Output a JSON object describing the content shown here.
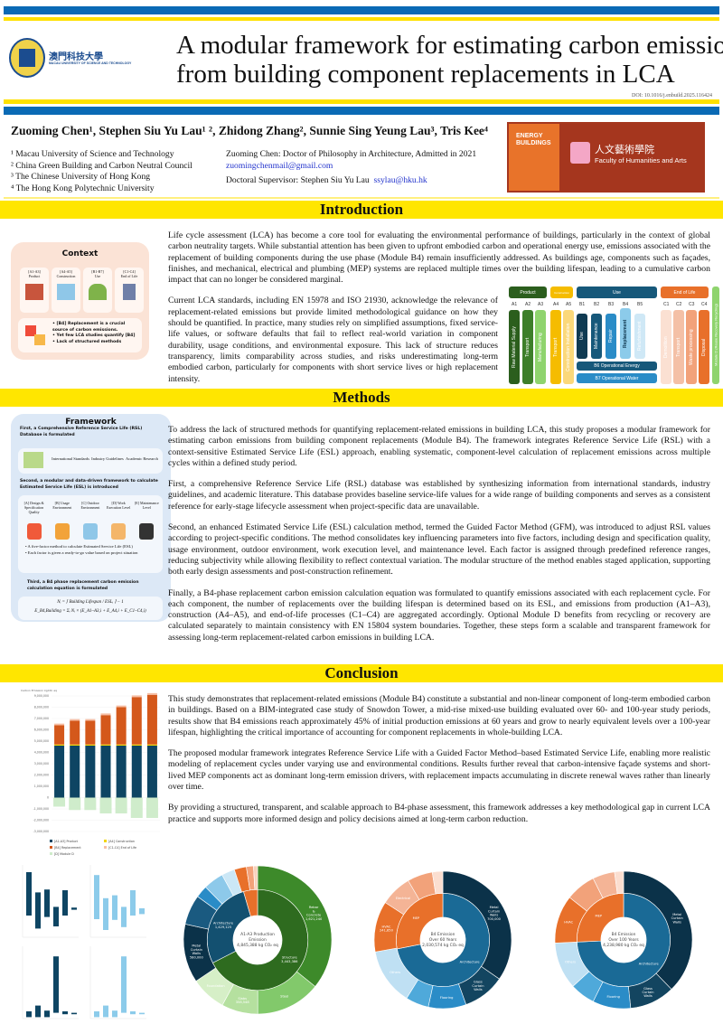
{
  "header": {
    "title_line1": "A modular framework for estimating carbon emissions",
    "title_line2": "from building component replacements in LCA",
    "doi": "DOI: 10.1016/j.enbuild.2025.116424",
    "university_cn": "澳門科技大學",
    "university_en": "MACAU UNIVERSITY OF SCIENCE AND TECHNOLOGY",
    "journal": "ENERGY BUILDINGS",
    "faculty_cn": "人文藝術學院",
    "faculty_en": "Faculty of Humanities and Arts"
  },
  "authors": "Zuoming Chen¹, Stephen Siu Yu Lau¹ ², Zhidong Zhang², Sunnie Sing Yeung Lau³, Tris Kee⁴",
  "affiliations": [
    "¹ Macau University of Science and Technology",
    "² China Green Building and Carbon Neutral Council",
    "³ The Chinese University of Hong Kong",
    "⁴ The Hong Kong Polytechnic University"
  ],
  "contact": {
    "line1": "Zuoming Chen: Doctor of Philosophy in Architecture, Admitted in 2021",
    "email1": "zuomingchenmail@gmail.com",
    "supervisor": "Doctoral Supervisor: Stephen Siu Yu Lau",
    "email2": "ssylau@hku.hk"
  },
  "sections": {
    "intro": "Introduction",
    "methods": "Methods",
    "conclusion": "Conclusion"
  },
  "context": {
    "title": "Context",
    "stages": [
      {
        "code": "[A1-A3]",
        "name": "Product"
      },
      {
        "code": "[A4-A5]",
        "name": "Construction"
      },
      {
        "code": "[B1-B7]",
        "name": "Use"
      },
      {
        "code": "[C1-C4]",
        "name": "End of Life"
      }
    ],
    "bullets": [
      "[B4] Replacement is a crucial source of carbon emissions.",
      "Yet few LCA studies quantify [B4]",
      "Lack of structured methods"
    ]
  },
  "intro": [
    "Life cycle assessment (LCA) has become a core tool for evaluating the environmental performance of buildings, particularly in the context of global carbon neutrality targets. While substantial attention has been given to upfront embodied carbon and operational energy use, emissions associated with the replacement of building components during the use phase (Module B4) remain insufficiently addressed. As buildings age, components such as façades, finishes, and mechanical, electrical and plumbing (MEP) systems are replaced multiple times over the building lifespan, leading to a cumulative carbon impact that can no longer be considered marginal.",
    "Current LCA standards, including EN 15978 and ISO 21930, acknowledge the relevance of replacement-related emissions but provide limited methodological guidance on how they should be quantified. In practice, many studies rely on simplified assumptions, fixed service-life values, or software defaults that fail to reflect real-world variation in component durability, usage conditions, and environmental exposure. This lack of structure reduces transparency, limits comparability across studies, and risks underestimating long-term embodied carbon, particularly for components with short service lives or high replacement intensity."
  ],
  "lca": {
    "groups": {
      "product": "Product",
      "construction": "Construction",
      "use": "Use",
      "eol": "End of Life"
    },
    "codes": [
      "A1",
      "A2",
      "A3",
      "A4",
      "A5",
      "B1",
      "B2",
      "B3",
      "B4",
      "B5",
      "C1",
      "C2",
      "C3",
      "C4"
    ],
    "modules": [
      "Raw Material Supply",
      "Transport",
      "Manufacturing",
      "Transport",
      "Construction Installation",
      "Use",
      "Maintenance",
      "Repair",
      "Replacement",
      "Refurbishment",
      "Demolition",
      "Transport",
      "Waste processing",
      "Disposal"
    ],
    "b6": "B6 Operational Energy",
    "b7": "B7 Operational Water",
    "d": "Module D (Reuse Recovery Recycling)"
  },
  "framework": {
    "title": "Framework",
    "step1": "First, a Comprehensive Reference Service Life (RSL) Database is formulated",
    "sources": [
      "International Standards",
      "Industry Guidelines",
      "Academic Research"
    ],
    "step2": "Second, a modular and data-driven framework to calculate Estimated Service Life (ESL) is introduced",
    "factors": [
      "[A] Design & Specification Quality",
      "[B] Usage Environment",
      "[C] Outdoor Environment",
      "[D] Work Execution Level",
      "[E] Maintenance Level"
    ],
    "bullets": [
      "A five-factor method to calculate Estimated Service Life (ESL)",
      "Each factor is given a ready-to-go value based on project situation"
    ],
    "step3": "Third, a B4 phase replacement carbon emission calculation equation is formulated",
    "eq1": "Nᵢ = ⌈ Building Lifespan / ESLᵢ ⌉ − 1",
    "eq2": "E_B4,Building = Σᵢ Nᵢ × (E_A1–A3,i + E_A4,i + E_C1–C4,i)"
  },
  "methods": [
    "To address the lack of structured methods for quantifying replacement-related emissions in building LCA, this study proposes a modular framework for estimating carbon emissions from building component replacements (Module B4). The framework integrates Reference Service Life (RSL) with a context-sensitive Estimated Service Life (ESL) approach, enabling systematic, component-level calculation of replacement emissions across multiple cycles within a defined study period.",
    "First, a comprehensive Reference Service Life (RSL) database was established by synthesizing information from international standards, industry guidelines, and academic literature. This database provides baseline service-life values for a wide range of building components and serves as a consistent reference for early-stage lifecycle assessment when project-specific data are unavailable.",
    "Second, an enhanced Estimated Service Life (ESL) calculation method, termed the Guided Factor Method (GFM), was introduced to adjust RSL values according to project-specific conditions. The method consolidates key influencing parameters into five factors, including design and specification quality, usage environment, outdoor environment, work execution level, and maintenance level. Each factor is assigned through predefined reference ranges, reducing subjectivity while allowing flexibility to reflect contextual variation. The modular structure of the method enables staged application, supporting both early design assessments and post-construction refinement.",
    "Finally, a B4-phase replacement carbon emission calculation equation was formulated to quantify emissions associated with each replacement cycle. For each component, the number of replacements over the building lifespan is determined based on its ESL, and emissions from production (A1–A3), construction (A4–A5), and end-of-life processes (C1–C4) are aggregated accordingly. Optional Module D benefits from recycling or recovery are calculated separately to maintain consistency with EN 15804 system boundaries. Together, these steps form a scalable and transparent framework for assessing long-term replacement-related carbon emissions in building LCA."
  ],
  "conclusion": [
    "This study demonstrates that replacement-related emissions (Module B4) constitute a substantial and non-linear component of long-term embodied carbon in buildings. Based on a BIM-integrated case study of Snowdon Tower, a mid-rise mixed-use building evaluated over 60- and 100-year study periods, results show that B4 emissions reach approximately 45% of initial production emissions at 60 years and grow to nearly equivalent levels over a 100-year lifespan, highlighting the critical importance of accounting for component replacements in whole-building LCA.",
    "The proposed modular framework integrates Reference Service Life with a Guided Factor Method–based Estimated Service Life, enabling more realistic modeling of replacement cycles under varying use and environmental conditions. Results further reveal that carbon-intensive façade systems and short-lived MEP components act as dominant long-term emission drivers, with replacement impacts accumulating in discrete renewal waves rather than linearly over time.",
    "By providing a structured, transparent, and scalable approach to B4-phase assessment, this framework addresses a key methodological gap in current LCA practice and supports more informed design and policy decisions aimed at long-term carbon reduction."
  ],
  "chart_data": [
    {
      "type": "bar",
      "stacked": true,
      "ylabel": "Carbon Emission kgCO₂ eq",
      "ylim": [
        -3000000,
        9000000
      ],
      "yticks": [
        -3000000,
        -2000000,
        -1000000,
        0,
        1000000,
        2000000,
        3000000,
        4000000,
        5000000,
        6000000,
        7000000,
        8000000,
        9000000
      ],
      "series": [
        {
          "name": "[A1-A3] Product",
          "color": "#0e4563",
          "values": [
            4600000,
            4600000,
            4600000,
            4600000,
            4600000,
            4600000,
            4600000
          ]
        },
        {
          "name": "[A4] Construction",
          "color": "#f2d500",
          "values": [
            100000,
            100000,
            100000,
            100000,
            100000,
            100000,
            100000
          ]
        },
        {
          "name": "[B4] Replacement",
          "color": "#d4581b",
          "values": [
            1700000,
            2100000,
            2100000,
            2600000,
            3300000,
            4200000,
            4400000
          ]
        },
        {
          "name": "[C1-C4] End of Life",
          "color": "#f6bfa5",
          "values": [
            150000,
            150000,
            150000,
            150000,
            150000,
            150000,
            150000
          ]
        },
        {
          "name": "[D] Module D",
          "color": "#cfeccb",
          "values": [
            -800000,
            -1100000,
            -1100000,
            -1400000,
            -1400000,
            -1800000,
            -1800000
          ]
        }
      ],
      "legend": "bottom"
    },
    {
      "type": "bar",
      "subtype": "range",
      "panels": [
        {
          "color": "#0e4563",
          "ranges": [
            [
              3,
              9
            ],
            [
              1.2,
              6.2
            ],
            [
              2.8,
              6.6
            ],
            [
              1.5,
              4.2
            ],
            [
              3,
              6.5
            ],
            [
              3.8,
              4.1
            ]
          ]
        },
        {
          "color": "#8ccbea",
          "ranges": [
            [
              2.5,
              8.6
            ],
            [
              1,
              5.4
            ],
            [
              2.4,
              5.8
            ],
            [
              1.4,
              4.2
            ],
            [
              3,
              6.5
            ],
            [
              3.2,
              4
            ]
          ]
        },
        {
          "color": "#0e4563",
          "ranges": [
            [
              0.2,
              1
            ],
            [
              0.2,
              1.8
            ],
            [
              0.2,
              1.1
            ],
            [
              0.8,
              8.6
            ],
            [
              0.6,
              1
            ],
            [
              0.6,
              0.8
            ]
          ]
        },
        {
          "color": "#8ccbea",
          "ranges": [
            [
              0.2,
              1
            ],
            [
              0.2,
              1.8
            ],
            [
              0.2,
              1.1
            ],
            [
              0.8,
              8.6
            ],
            [
              0.6,
              1
            ],
            [
              0.6,
              0.8
            ]
          ]
        }
      ]
    },
    {
      "type": "pie",
      "subtype": "sunburst",
      "center_label": [
        "A1-A3 Production",
        "Emission",
        "4,845,388 kg CO₂ eq"
      ],
      "inner": [
        {
          "name": "Structure 3,443,386",
          "value": 3443386,
          "color": "#2e6b1f"
        },
        {
          "name": "Architecture 1,429,125",
          "value": 1429125,
          "color": "#135070"
        },
        {
          "name": "MEP",
          "value": 230000,
          "color": "#e8702a"
        }
      ],
      "outer": [
        {
          "name": "Rebar & Concrete 1,621,240",
          "value": 1621240,
          "color": "#3d8a2a"
        },
        {
          "name": "Steel",
          "value": 640000,
          "color": "#82c96b"
        },
        {
          "name": "Slabs 358,548",
          "value": 358548,
          "color": "#b5e09f"
        },
        {
          "name": "Foundation",
          "value": 350000,
          "color": "#d6efc7"
        },
        {
          "name": "Metal Curtain Walls 580,000",
          "value": 580000,
          "color": "#0b3249"
        },
        {
          "name": "Glass Curtain Walls 296,061",
          "value": 296061,
          "color": "#1a5a80"
        },
        {
          "name": "Doors",
          "value": 120000,
          "color": "#2a8cc7"
        },
        {
          "name": "Others",
          "value": 200000,
          "color": "#8dc9ea"
        },
        {
          "name": "Finishes",
          "value": 130000,
          "color": "#cbe7f6"
        },
        {
          "name": "HVAC",
          "value": 120000,
          "color": "#e8702a"
        },
        {
          "name": "Electrical",
          "value": 70000,
          "color": "#f2a27a"
        },
        {
          "name": "Plumbing",
          "value": 40000,
          "color": "#f8d2bd"
        }
      ]
    },
    {
      "type": "pie",
      "subtype": "sunburst",
      "center_label": [
        "B4 Emission",
        "Over 60 Years",
        "2,030,574 kg CO₂ eq"
      ],
      "inner": [
        {
          "name": "Architecture",
          "value": 1460000,
          "color": "#1a6a96"
        },
        {
          "name": "MEP",
          "value": 570000,
          "color": "#e8702a"
        }
      ],
      "outer": [
        {
          "name": "Metal Curtain Walls 700,000",
          "value": 700000,
          "color": "#0b3249"
        },
        {
          "name": "Glass Curtain Walls",
          "value": 200000,
          "color": "#134560"
        },
        {
          "name": "Flooring",
          "value": 180000,
          "color": "#2a8cc7"
        },
        {
          "name": "Plastering",
          "value": 110000,
          "color": "#4fa9da"
        },
        {
          "name": "Others",
          "value": 270000,
          "color": "#bfe0f3"
        },
        {
          "name": "HVAC 241,850",
          "value": 241850,
          "color": "#e8702a"
        },
        {
          "name": "Electrical",
          "value": 150000,
          "color": "#f4b496"
        },
        {
          "name": "Elevator",
          "value": 120000,
          "color": "#f2a27a"
        },
        {
          "name": "Plumbing",
          "value": 50000,
          "color": "#fbded0"
        }
      ]
    },
    {
      "type": "pie",
      "subtype": "sunburst",
      "center_label": [
        "B4 Emission",
        "Over 100 Years",
        "4,238,980 kg CO₂ eq"
      ],
      "inner": [
        {
          "name": "Architecture",
          "value": 3150000,
          "color": "#1a6a96"
        },
        {
          "name": "MEP",
          "value": 1090000,
          "color": "#e8702a"
        }
      ],
      "outer": [
        {
          "name": "Metal Curtain Walls",
          "value": 1600000,
          "color": "#0b3249"
        },
        {
          "name": "Glass Curtain Walls",
          "value": 450000,
          "color": "#134560"
        },
        {
          "name": "Flooring",
          "value": 380000,
          "color": "#2a8cc7"
        },
        {
          "name": "Plastering",
          "value": 250000,
          "color": "#4fa9da"
        },
        {
          "name": "Others",
          "value": 470000,
          "color": "#bfe0f3"
        },
        {
          "name": "HVAC",
          "value": 480000,
          "color": "#e8702a"
        },
        {
          "name": "Electrical",
          "value": 300000,
          "color": "#f2a27a"
        },
        {
          "name": "Elevator",
          "value": 220000,
          "color": "#f4b496"
        },
        {
          "name": "Plumbing",
          "value": 90000,
          "color": "#fbded0"
        }
      ]
    }
  ]
}
